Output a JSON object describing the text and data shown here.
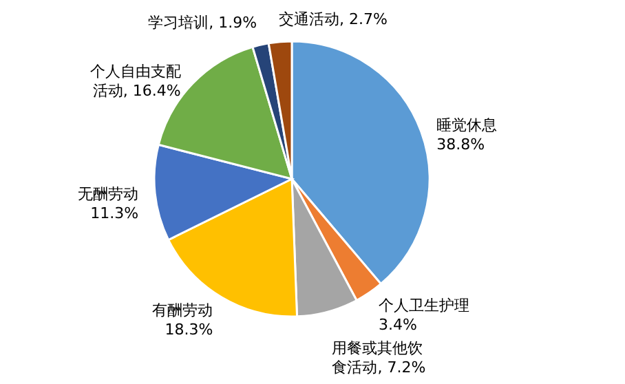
{
  "chart_data": {
    "type": "pie",
    "categories": [
      "睡觉休息",
      "个人卫生护理",
      "用餐或其他饮食活动",
      "有酬劳动",
      "无酬劳动",
      "个人自由支配活动",
      "学习培训",
      "交通活动"
    ],
    "values": [
      38.8,
      3.4,
      7.2,
      18.3,
      11.3,
      16.4,
      1.9,
      2.7
    ],
    "value_labels": [
      "38.8%",
      "3.4%",
      "7.2%",
      "18.3%",
      "11.3%",
      "16.4%",
      "1.9%",
      "2.7%"
    ],
    "colors": [
      "#5b9bd5",
      "#ed7d31",
      "#a5a5a5",
      "#ffc000",
      "#4472c4",
      "#70ad47",
      "#264478",
      "#9e480e"
    ]
  }
}
